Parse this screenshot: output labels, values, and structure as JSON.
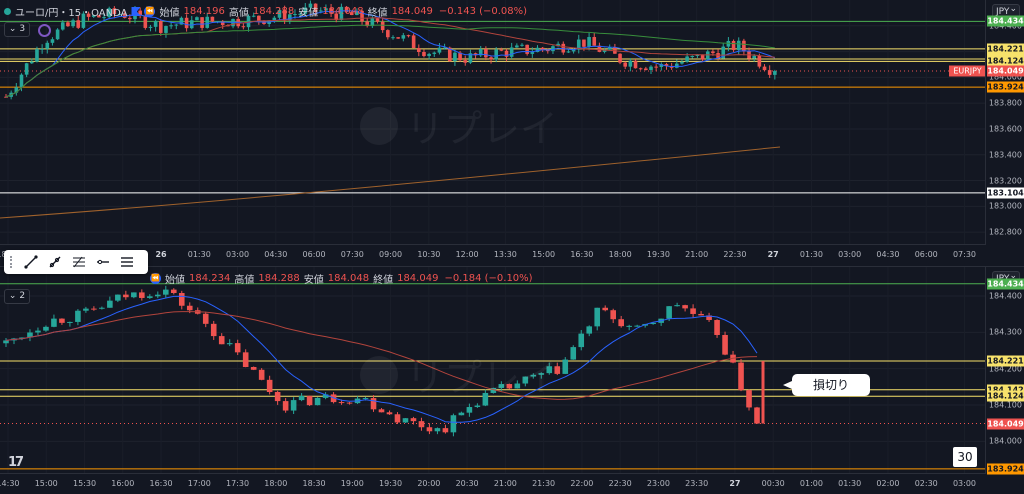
{
  "top": {
    "symbol": "ユーロ/円・15・OANDA",
    "open_label": "始値",
    "open": "184.196",
    "high_label": "高値",
    "high": "184.288",
    "low_label": "安値",
    "low": "184.048",
    "close_label": "終値",
    "close": "184.049",
    "change": "−0.143 (−0.08%)",
    "collapse": "3",
    "currency": "JPY",
    "price_ticks": [
      "184.400",
      "184.200",
      "184.000",
      "183.800",
      "183.600",
      "183.400",
      "183.200",
      "183.000",
      "182.800"
    ],
    "labels": [
      {
        "text": "184.434",
        "bg": "#4caf50",
        "fg": "#ffffff",
        "price": 184.434
      },
      {
        "text": "184.221",
        "bg": "#f7e26b",
        "fg": "#131722",
        "price": 184.221
      },
      {
        "text": "184.142",
        "bg": "#f7e26b",
        "fg": "#131722",
        "price": 184.142
      },
      {
        "text": "184.124",
        "bg": "#f7e26b",
        "fg": "#131722",
        "price": 184.124
      },
      {
        "text": "184.049",
        "bg": "#ef5350",
        "fg": "#ffffff",
        "price": 184.049
      },
      {
        "text": "183.924",
        "bg": "#ff9800",
        "fg": "#131722",
        "price": 183.924
      },
      {
        "text": "183.104",
        "bg": "#ffffff",
        "fg": "#131722",
        "price": 183.104
      }
    ],
    "symbol_tag": "EURJPY",
    "time_ticks": [
      "18:00",
      "19:30",
      "21:00",
      "22:30",
      "26",
      "01:30",
      "03:00",
      "04:30",
      "06:00",
      "07:30",
      "09:00",
      "10:30",
      "12:00",
      "13:30",
      "15:00",
      "16:30",
      "18:00",
      "19:30",
      "21:00",
      "22:30",
      "27",
      "01:30",
      "03:00",
      "04:30",
      "06:00",
      "07:30"
    ],
    "watermark": "リプレイ"
  },
  "bottom": {
    "open_label": "始値",
    "open": "184.234",
    "high_label": "高値",
    "high": "184.288",
    "low_label": "安値",
    "low": "184.048",
    "close_label": "終値",
    "close": "184.049",
    "change": "−0.184 (−0.10%)",
    "collapse": "2",
    "currency": "JPY",
    "price_ticks": [
      "184.400",
      "184.300",
      "184.200",
      "184.100",
      "184.000"
    ],
    "labels": [
      {
        "text": "184.434",
        "bg": "#4caf50",
        "fg": "#ffffff",
        "price": 184.434
      },
      {
        "text": "184.221",
        "bg": "#f7e26b",
        "fg": "#131722",
        "price": 184.221
      },
      {
        "text": "184.142",
        "bg": "#f7e26b",
        "fg": "#131722",
        "price": 184.142
      },
      {
        "text": "184.124",
        "bg": "#f7e26b",
        "fg": "#131722",
        "price": 184.124
      },
      {
        "text": "184.049",
        "bg": "#ef5350",
        "fg": "#ffffff",
        "price": 184.049
      },
      {
        "text": "183.924",
        "bg": "#ff9800",
        "fg": "#131722",
        "price": 183.924
      }
    ],
    "time_ticks": [
      "14:30",
      "15:00",
      "15:30",
      "16:00",
      "16:30",
      "17:00",
      "17:30",
      "18:00",
      "18:30",
      "19:00",
      "19:30",
      "20:00",
      "20:30",
      "21:00",
      "21:30",
      "22:00",
      "22:30",
      "23:00",
      "23:30",
      "27",
      "00:30",
      "01:00",
      "01:30",
      "02:00",
      "02:30",
      "03:00"
    ],
    "callout": "損切り",
    "interval": "30",
    "watermark": "リプレイ"
  },
  "chart_data": [
    {
      "type": "candlestick",
      "title": "ユーロ/円・15・OANDA",
      "ylim": [
        182.7,
        184.6
      ],
      "horizontal_levels": [
        184.434,
        184.221,
        184.142,
        184.124,
        183.924,
        183.104
      ],
      "last_price": 184.049,
      "approx_close_path": [
        {
          "t": "18:00",
          "c": 183.85
        },
        {
          "t": "19:30",
          "c": 184.3
        },
        {
          "t": "21:00",
          "c": 184.45
        },
        {
          "t": "22:30",
          "c": 184.5
        },
        {
          "t": "26",
          "c": 184.4
        },
        {
          "t": "01:30",
          "c": 184.43
        },
        {
          "t": "03:00",
          "c": 184.44
        },
        {
          "t": "04:30",
          "c": 184.47
        },
        {
          "t": "06:00",
          "c": 184.52
        },
        {
          "t": "07:30",
          "c": 184.48
        },
        {
          "t": "09:00",
          "c": 184.35
        },
        {
          "t": "10:30",
          "c": 184.2
        },
        {
          "t": "12:00",
          "c": 184.15
        },
        {
          "t": "13:30",
          "c": 184.2
        },
        {
          "t": "15:00",
          "c": 184.22
        },
        {
          "t": "16:30",
          "c": 184.28
        },
        {
          "t": "18:00",
          "c": 184.14
        },
        {
          "t": "19:30",
          "c": 184.08
        },
        {
          "t": "21:00",
          "c": 184.15
        },
        {
          "t": "22:30",
          "c": 184.25
        },
        {
          "t": "27",
          "c": 184.049
        }
      ]
    },
    {
      "type": "candlestick",
      "ylim": [
        183.91,
        184.48
      ],
      "horizontal_levels": [
        184.434,
        184.221,
        184.142,
        184.124,
        183.924
      ],
      "last_price": 184.049,
      "stop_loss_price": 184.049,
      "approx_close_path": [
        {
          "t": "14:30",
          "c": 184.27
        },
        {
          "t": "15:00",
          "c": 184.33
        },
        {
          "t": "15:30",
          "c": 184.35
        },
        {
          "t": "16:00",
          "c": 184.4
        },
        {
          "t": "16:30",
          "c": 184.42
        },
        {
          "t": "17:00",
          "c": 184.33
        },
        {
          "t": "17:30",
          "c": 184.22
        },
        {
          "t": "18:00",
          "c": 184.1
        },
        {
          "t": "18:30",
          "c": 184.12
        },
        {
          "t": "19:00",
          "c": 184.12
        },
        {
          "t": "19:30",
          "c": 184.06
        },
        {
          "t": "20:00",
          "c": 184.03
        },
        {
          "t": "20:30",
          "c": 184.12
        },
        {
          "t": "21:00",
          "c": 184.16
        },
        {
          "t": "21:30",
          "c": 184.2
        },
        {
          "t": "22:00",
          "c": 184.36
        },
        {
          "t": "22:30",
          "c": 184.3
        },
        {
          "t": "23:00",
          "c": 184.38
        },
        {
          "t": "23:30",
          "c": 184.3
        },
        {
          "t": "27",
          "c": 184.049
        }
      ]
    }
  ]
}
